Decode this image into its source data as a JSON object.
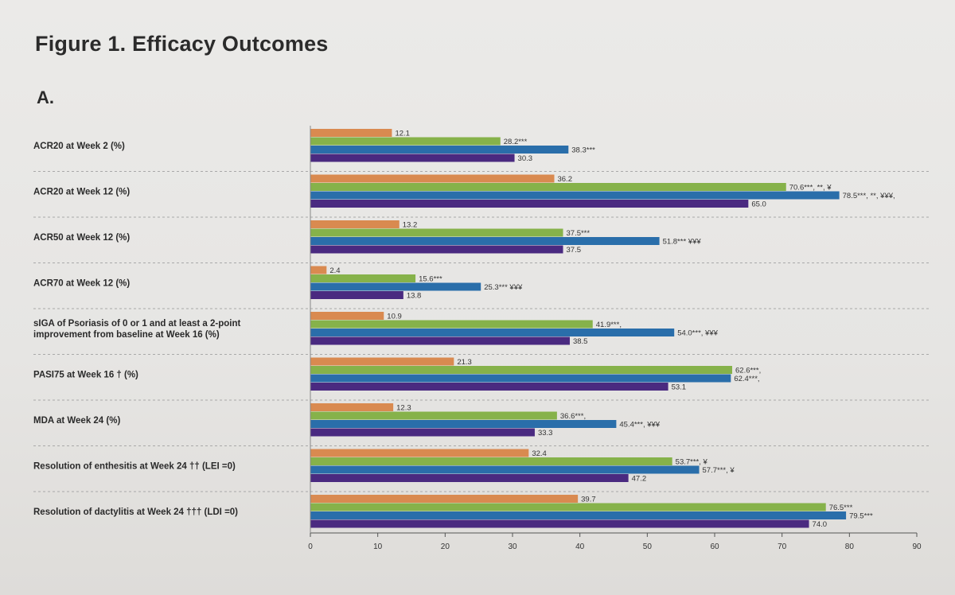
{
  "figure": {
    "title": "Figure 1. Efficacy Outcomes",
    "panel": "A."
  },
  "chart_data": {
    "type": "bar",
    "orientation": "horizontal",
    "title": "Figure 1. Efficacy Outcomes",
    "xlim": [
      0,
      90
    ],
    "xticks": [
      0,
      10,
      20,
      30,
      40,
      50,
      60,
      70,
      80,
      90
    ],
    "grid": false,
    "categories": [
      "ACR20 at Week 2 (%)",
      "ACR20 at Week 12 (%)",
      "ACR50 at Week 12 (%)",
      "ACR70 at Week 12 (%)",
      [
        "sIGA of Psoriasis of 0 or 1 and at least a 2-point",
        "improvement from baseline at Week 16 (%)"
      ],
      "PASI75 at Week 16 † (%)",
      "MDA at Week 24 (%)",
      "Resolution of enthesitis at Week 24 †† (LEI =0)",
      "Resolution of dactylitis at Week 24 ††† (LDI =0)"
    ],
    "series": [
      {
        "color": "#d98a50",
        "values": [
          12.1,
          36.2,
          13.2,
          2.4,
          10.9,
          21.3,
          12.3,
          32.4,
          39.7
        ],
        "labels": [
          "12.1",
          "36.2",
          "13.2",
          "2.4",
          "10.9",
          "21.3",
          "12.3",
          "32.4",
          "39.7"
        ]
      },
      {
        "color": "#86b24a",
        "values": [
          28.2,
          70.6,
          37.5,
          15.6,
          41.9,
          62.6,
          36.6,
          53.7,
          76.5
        ],
        "labels": [
          "28.2***",
          "70.6***, **, ¥",
          "37.5***",
          "15.6***",
          "41.9***,",
          "62.6***,",
          "36.6***,",
          "53.7***, ¥",
          "76.5***"
        ]
      },
      {
        "color": "#2a6eaa",
        "values": [
          38.3,
          78.5,
          51.8,
          25.3,
          54.0,
          62.4,
          45.4,
          57.7,
          79.5
        ],
        "labels": [
          "38.3***",
          "78.5***, **, ¥¥¥,",
          "51.8*** ¥¥¥",
          "25.3*** ¥¥¥",
          "54.0***, ¥¥¥",
          "62.4***,",
          "45.4***, ¥¥¥",
          "57.7***, ¥",
          "79.5***"
        ]
      },
      {
        "color": "#4a2a80",
        "values": [
          30.3,
          65.0,
          37.5,
          13.8,
          38.5,
          53.1,
          33.3,
          47.2,
          74.0
        ],
        "labels": [
          "30.3",
          "65.0",
          "37.5",
          "13.8",
          "38.5",
          "53.1",
          "33.3",
          "47.2",
          "74.0"
        ]
      }
    ]
  }
}
